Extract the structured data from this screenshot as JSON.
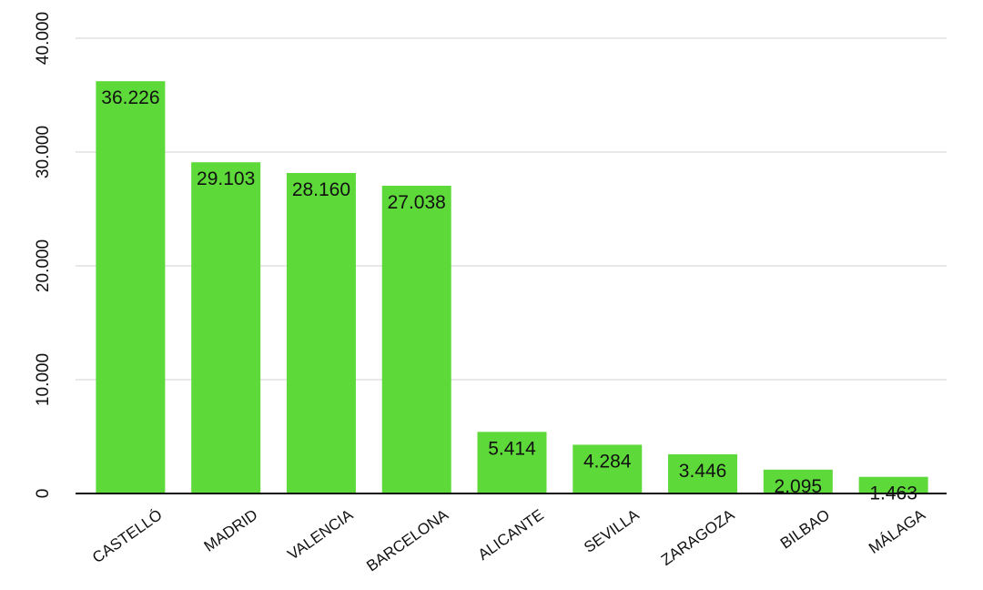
{
  "chart_data": {
    "type": "bar",
    "title": "",
    "xlabel": "",
    "ylabel": "",
    "categories": [
      "CASTELLÓ",
      "MADRID",
      "VALENCIA",
      "BARCELONA",
      "ALICANTE",
      "SEVILLA",
      "ZARAGOZA",
      "BILBAO",
      "MÁLAGA"
    ],
    "values": [
      36226,
      29103,
      28160,
      27038,
      5414,
      4284,
      3446,
      2095,
      1463
    ],
    "value_labels": [
      "36.226",
      "29.103",
      "28.160",
      "27.038",
      "5.414",
      "4.284",
      "3.446",
      "2.095",
      "1.463"
    ],
    "ylim": [
      0,
      40000
    ],
    "y_ticks": [
      0,
      10000,
      20000,
      30000,
      40000
    ],
    "y_tick_labels": [
      "0",
      "10.000",
      "20.000",
      "30.000",
      "40.000"
    ],
    "grid": true,
    "bar_color": "#5ed93a",
    "grid_color": "#d0d0d0",
    "axis_color": "#111111"
  }
}
